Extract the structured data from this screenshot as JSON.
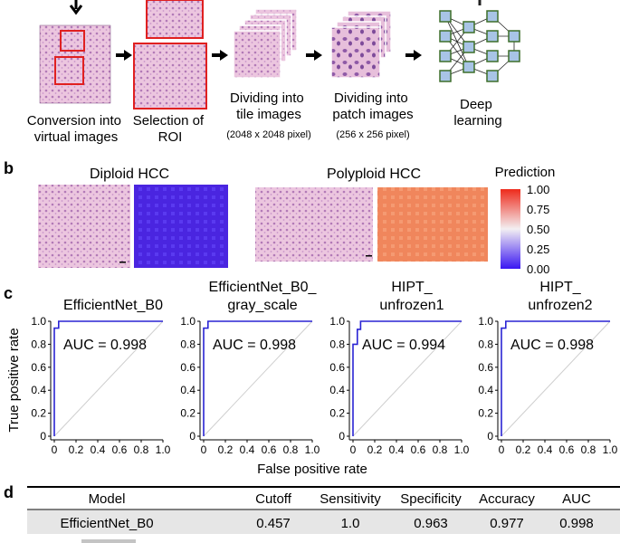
{
  "panel_a": {
    "captions": [
      {
        "lines": [
          "Conversion into",
          "virtual images"
        ]
      },
      {
        "lines": [
          "Selection of",
          "ROI"
        ]
      },
      {
        "lines": [
          "Dividing into",
          "tile images"
        ],
        "note": "(2048 x 2048 pixel)"
      },
      {
        "lines": [
          "Dividing into",
          "patch images"
        ],
        "note": "(256 x 256 pixel)"
      },
      {
        "lines": [
          "Deep",
          "learning"
        ]
      }
    ]
  },
  "panel_b": {
    "label": "b",
    "titles": [
      "Diploid HCC",
      "Polyploid HCC"
    ],
    "colorbar": {
      "title": "Prediction",
      "ticks": [
        "1.00",
        "0.75",
        "0.50",
        "0.25",
        "0.00"
      ],
      "colors": {
        "high": "#ee2a1b",
        "mid": "#f3eff2",
        "low": "#3a16f2"
      }
    },
    "diploid_heatmap_value": 0.01,
    "polyploid_heatmap_value": 0.79
  },
  "panel_c": {
    "label": "c",
    "ylabel": "True positive rate",
    "xlabel": "False positive rate",
    "xticks": [
      "0",
      "0.2",
      "0.4",
      "0.6",
      "0.8",
      "1.0"
    ],
    "yticks": [
      "1.0",
      "0.8",
      "0.6",
      "0.4",
      "0.2",
      "0"
    ],
    "curve_color": "#2a24d4",
    "plots": [
      {
        "title": [
          "EfficientNet_B0"
        ],
        "auc_text": "AUC = 0.998"
      },
      {
        "title": [
          "EfficientNet_B0_",
          "gray_scale"
        ],
        "auc_text": "AUC = 0.998"
      },
      {
        "title": [
          "HIPT_",
          "unfrozen1"
        ],
        "auc_text": "AUC = 0.994"
      },
      {
        "title": [
          "HIPT_",
          "unfrozen2"
        ],
        "auc_text": "AUC = 0.998"
      }
    ]
  },
  "chart_data": [
    {
      "type": "line",
      "title": "EfficientNet_B0",
      "xlabel": "False positive rate",
      "ylabel": "True positive rate",
      "xlim": [
        0,
        1
      ],
      "ylim": [
        0,
        1
      ],
      "annotation": "AUC = 0.998",
      "series": [
        {
          "x": [
            0,
            0,
            0.04,
            0.04,
            1
          ],
          "y": [
            0,
            0.94,
            0.94,
            1,
            1
          ]
        }
      ]
    },
    {
      "type": "line",
      "title": "EfficientNet_B0_ gray_scale",
      "xlabel": "False positive rate",
      "ylabel": "True positive rate",
      "xlim": [
        0,
        1
      ],
      "ylim": [
        0,
        1
      ],
      "annotation": "AUC = 0.998",
      "series": [
        {
          "x": [
            0,
            0,
            0.04,
            0.04,
            1
          ],
          "y": [
            0,
            0.94,
            0.94,
            1,
            1
          ]
        }
      ]
    },
    {
      "type": "line",
      "title": "HIPT_ unfrozen1",
      "xlabel": "False positive rate",
      "ylabel": "True positive rate",
      "xlim": [
        0,
        1
      ],
      "ylim": [
        0,
        1
      ],
      "annotation": "AUC = 0.994",
      "series": [
        {
          "x": [
            0,
            0,
            0.04,
            0.04,
            0.07,
            0.07,
            1
          ],
          "y": [
            0,
            0.8,
            0.8,
            0.93,
            0.93,
            1,
            1
          ]
        }
      ]
    },
    {
      "type": "line",
      "title": "HIPT_ unfrozen2",
      "xlabel": "False positive rate",
      "ylabel": "True positive rate",
      "xlim": [
        0,
        1
      ],
      "ylim": [
        0,
        1
      ],
      "annotation": "AUC = 0.998",
      "series": [
        {
          "x": [
            0,
            0,
            0.04,
            0.04,
            1
          ],
          "y": [
            0,
            0.94,
            0.94,
            1,
            1
          ]
        }
      ]
    }
  ],
  "panel_d": {
    "label": "d",
    "headers": [
      "Model",
      "Cutoff",
      "Sensitivity",
      "Specificity",
      "Accuracy",
      "AUC"
    ],
    "rows": [
      [
        "EfficientNet_B0",
        "0.457",
        "1.0",
        "0.963",
        "0.977",
        "0.998"
      ]
    ]
  }
}
